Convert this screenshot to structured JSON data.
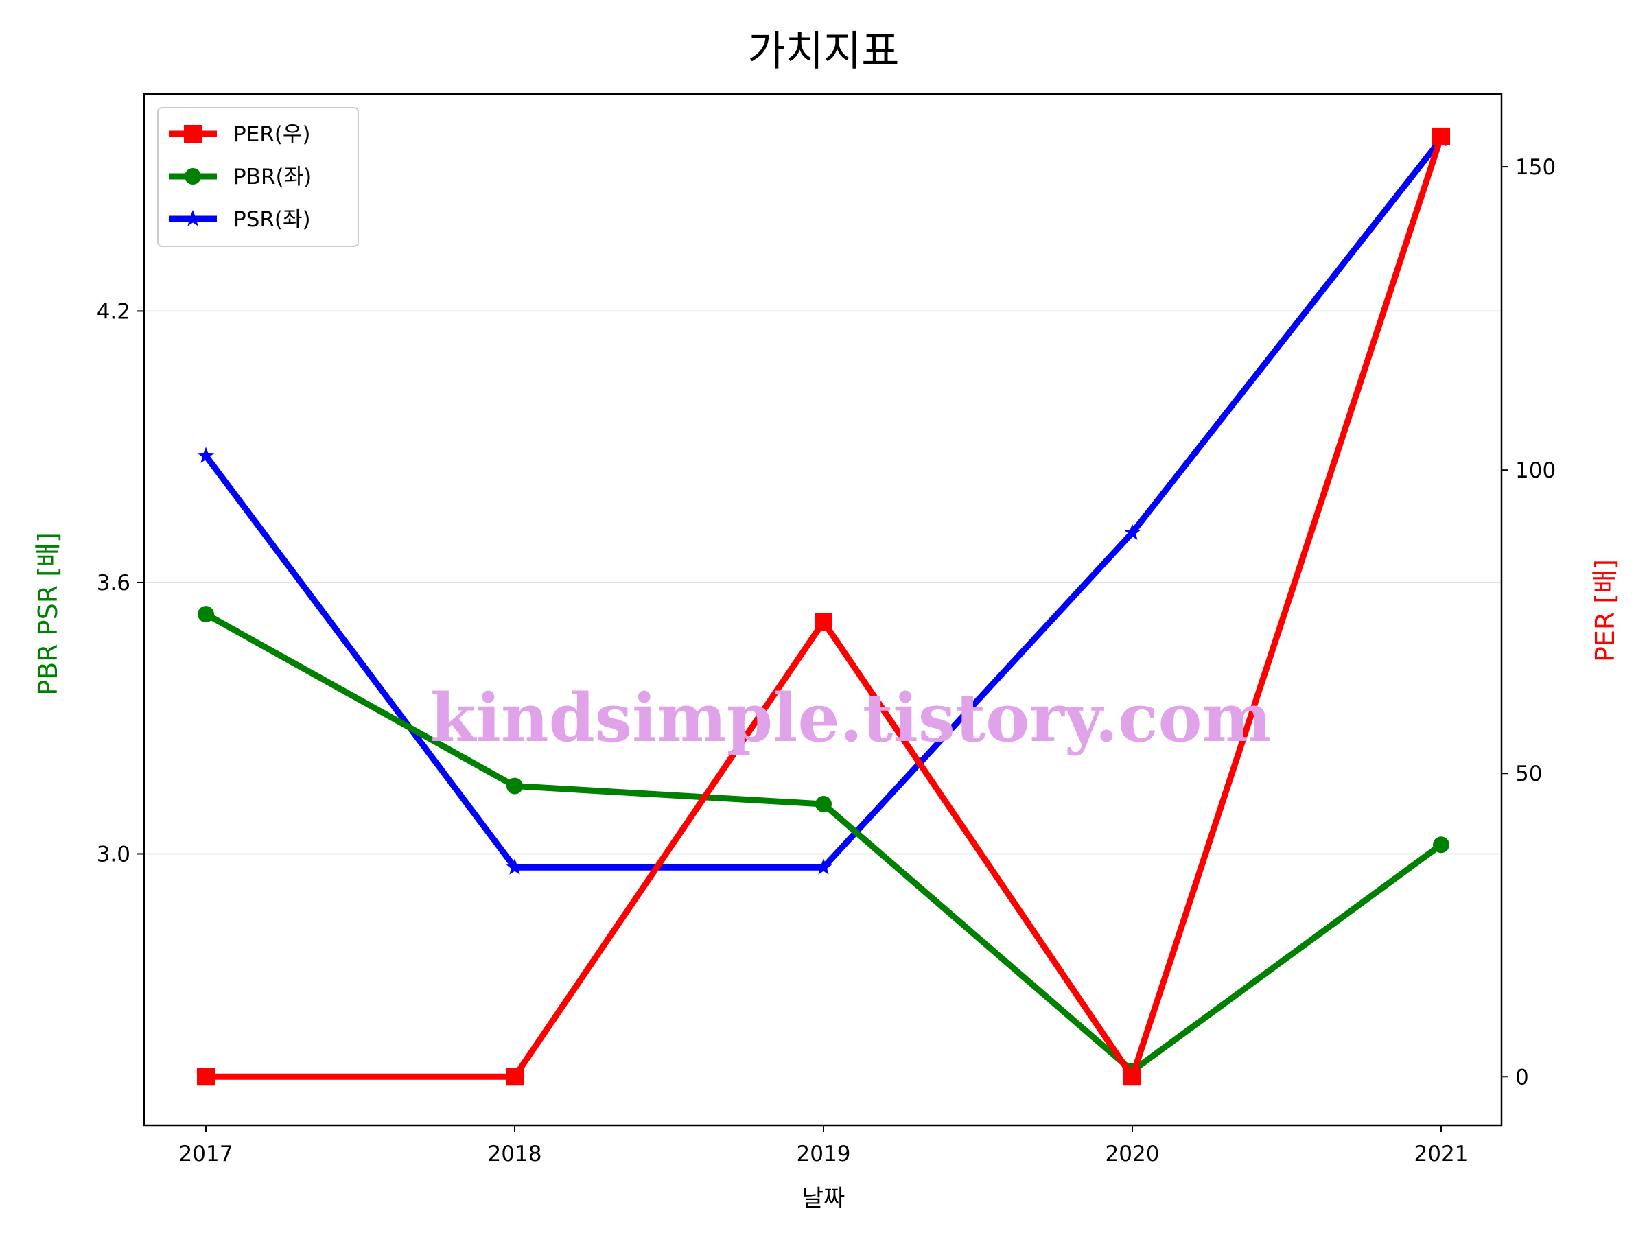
{
  "chart_data": {
    "type": "line",
    "title": "가치지표",
    "xlabel": "날짜",
    "ylabel_left": "PBR PSR [배]",
    "ylabel_right": "PER [배]",
    "categories": [
      "2017",
      "2018",
      "2019",
      "2020",
      "2021"
    ],
    "left_axis": {
      "ylim": [
        2.4,
        4.68
      ],
      "ticks": [
        "3.0",
        "3.6",
        "4.2"
      ],
      "tick_values": [
        3.0,
        3.6,
        4.2
      ],
      "grid": true
    },
    "right_axis": {
      "ylim": [
        -8,
        162
      ],
      "ticks": [
        "0",
        "50",
        "100",
        "150"
      ],
      "tick_values": [
        0,
        50,
        100,
        150
      ]
    },
    "series": [
      {
        "name": "PER(우)",
        "axis": "right",
        "color": "#ff0000",
        "marker": "square",
        "values": [
          0,
          0,
          75,
          0,
          155
        ]
      },
      {
        "name": "PBR(좌)",
        "axis": "left",
        "color": "#008000",
        "marker": "circle",
        "values": [
          3.53,
          3.15,
          3.11,
          2.52,
          3.02
        ]
      },
      {
        "name": "PSR(좌)",
        "axis": "left",
        "color": "#0000ff",
        "marker": "star",
        "values": [
          3.88,
          2.97,
          2.97,
          3.71,
          4.58
        ]
      }
    ],
    "legend_position": "top-left",
    "watermark": "kindsimple.tistory.com"
  }
}
